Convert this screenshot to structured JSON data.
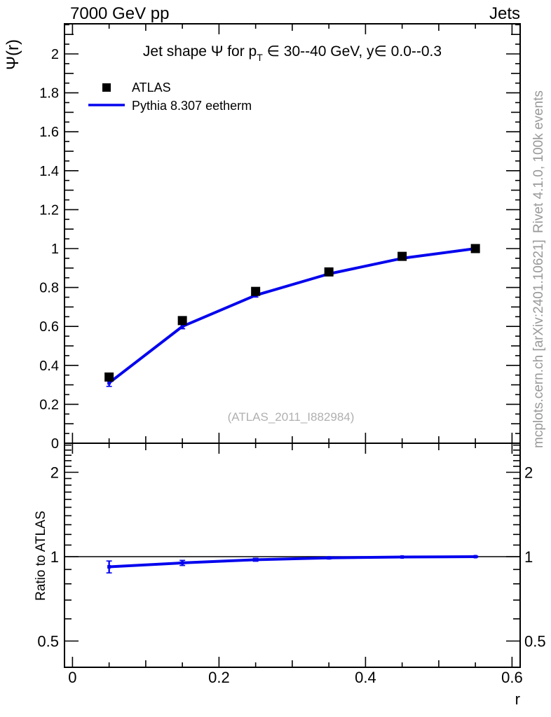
{
  "header": {
    "left": "7000 GeV pp",
    "right": "Jets"
  },
  "title": {
    "prefix": "Jet shape Ψ for p",
    "sub": "T",
    "suffix": " ∈ 30--40 GeV, y∈ 0.0--0.3"
  },
  "legend": {
    "data_label": "ATLAS",
    "mc_label": "Pythia 8.307 eetherm"
  },
  "watermark": "(ATLAS_2011_I882984)",
  "sidebar": {
    "top": "Rivet 4.1.0,  100k events",
    "bottom": "mcplots.cern.ch [arXiv:2401.10621]"
  },
  "colors": {
    "mc_blue": "#0404ee",
    "data_black": "#000000",
    "gray_text": "#999999",
    "watermark_gray": "#b0b0b0"
  },
  "chart_data": {
    "type": "line",
    "title": "Jet shape Ψ for p_T ∈ 30--40 GeV, y ∈ 0.0--0.3",
    "xlabel": "r",
    "ylabel": "Ψ(r)",
    "grid": false,
    "legend_position": "top-left",
    "x": [
      0.05,
      0.15,
      0.25,
      0.35,
      0.45,
      0.55
    ],
    "series": [
      {
        "name": "ATLAS",
        "type": "scatter",
        "marker": "filled-square",
        "color": "#000000",
        "values": [
          0.34,
          0.63,
          0.78,
          0.88,
          0.96,
          1.0
        ]
      },
      {
        "name": "Pythia 8.307 eetherm",
        "type": "line-with-points",
        "color": "#0404ee",
        "values": [
          0.31,
          0.6,
          0.76,
          0.87,
          0.95,
          1.0
        ],
        "errors": [
          0.018,
          0.012,
          0.009,
          0.007,
          0.005,
          0.004
        ]
      }
    ],
    "main_axis": {
      "ylim": [
        0,
        2.155
      ],
      "ytick_labeled": [
        0,
        0.2,
        0.4,
        0.6,
        0.8,
        1,
        1.2,
        1.4,
        1.6,
        1.8,
        2
      ],
      "ytick_minor_step": 0.05,
      "xlim": [
        -0.011,
        0.611
      ],
      "xtick_labeled": [
        0,
        0.2,
        0.4,
        0.6
      ],
      "xtick_minor_step": 0.05
    },
    "ratio_panel": {
      "ylabel": "Ratio to ATLAS",
      "yscale": "log",
      "ylim": [
        0.4,
        2.56
      ],
      "ytick_labeled": [
        0.5,
        1,
        2
      ],
      "reference_line": 1,
      "values": [
        0.92,
        0.95,
        0.975,
        0.99,
        0.997,
        1.0
      ],
      "errors": [
        0.045,
        0.02,
        0.012,
        0.008,
        0.006,
        0.005
      ]
    }
  }
}
